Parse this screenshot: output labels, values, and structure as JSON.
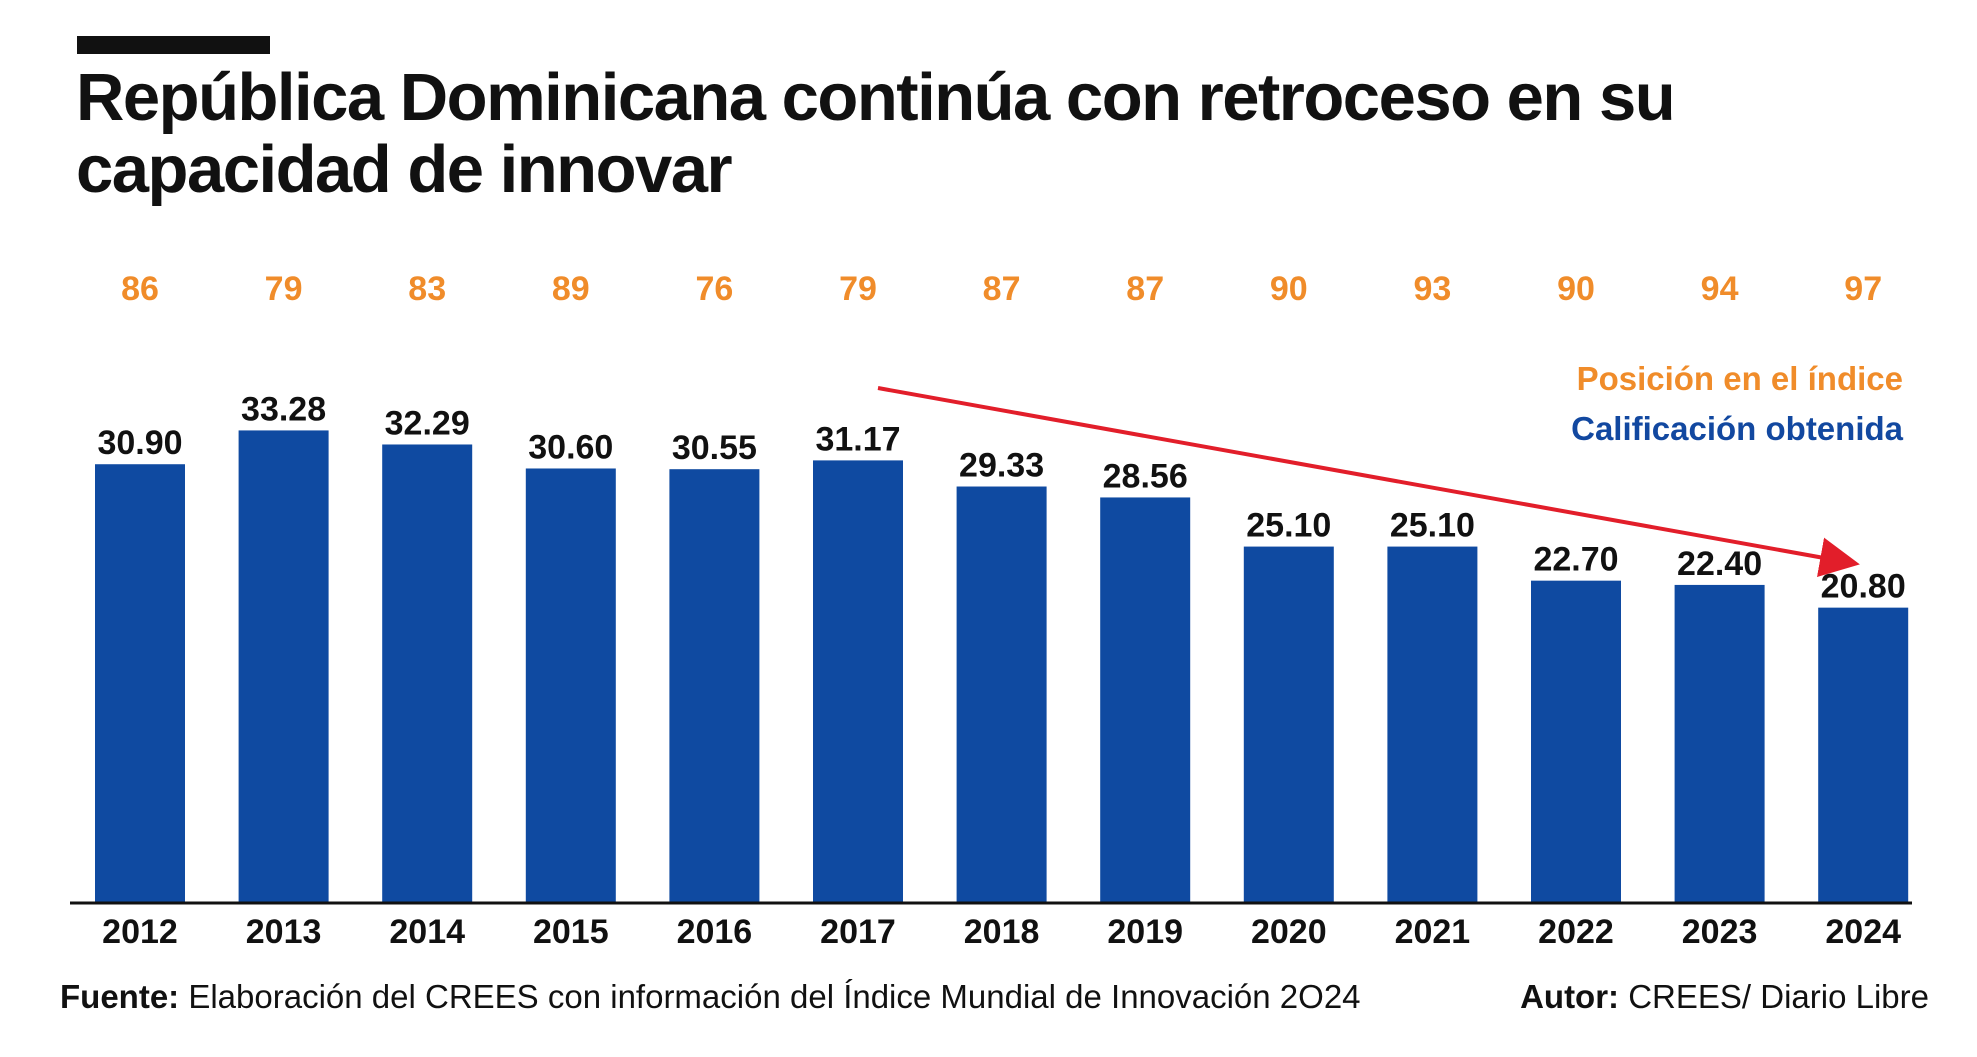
{
  "header": {
    "title": "República Dominicana continúa con retroceso en su capacidad de innovar"
  },
  "legend": {
    "rank_label": "Posición en el índice",
    "score_label": "Calificación obtenida"
  },
  "footer": {
    "source_label": "Fuente:",
    "source_text": "Elaboración del CREES con información del Índice Mundial de Innovación 2O24",
    "author_label": "Autor:",
    "author_text": "CREES/ Diario Libre"
  },
  "colors": {
    "bar": "#0f4aa1",
    "rank": "#f08c2a",
    "arrow": "#e21e2a",
    "text": "#111111"
  },
  "chart_data": {
    "type": "bar",
    "title": "República Dominicana continúa con retroceso en su capacidad de innovar",
    "categories": [
      "2012",
      "2013",
      "2014",
      "2015",
      "2016",
      "2017",
      "2018",
      "2019",
      "2020",
      "2021",
      "2022",
      "2023",
      "2024"
    ],
    "series": [
      {
        "name": "Calificación obtenida",
        "values": [
          30.9,
          33.28,
          32.29,
          30.6,
          30.55,
          31.17,
          29.33,
          28.56,
          25.1,
          25.1,
          22.7,
          22.4,
          20.8
        ],
        "labels": [
          "30.90",
          "33.28",
          "32.29",
          "30.60",
          "30.55",
          "31.17",
          "29.33",
          "28.56",
          "25.10",
          "25.10",
          "22.70",
          "22.40",
          "20.80"
        ]
      },
      {
        "name": "Posición en el índice",
        "values": [
          86,
          79,
          83,
          89,
          76,
          79,
          87,
          87,
          90,
          93,
          90,
          94,
          97
        ],
        "labels": [
          "86",
          "79",
          "83",
          "89",
          "76",
          "79",
          "87",
          "87",
          "90",
          "93",
          "90",
          "94",
          "97"
        ]
      }
    ],
    "ylim": [
      0,
      34
    ],
    "xlabel": "",
    "ylabel": "",
    "grid": false,
    "legend_position": "top-right",
    "annotation": "downward trend arrow from 2017 to 2024"
  }
}
